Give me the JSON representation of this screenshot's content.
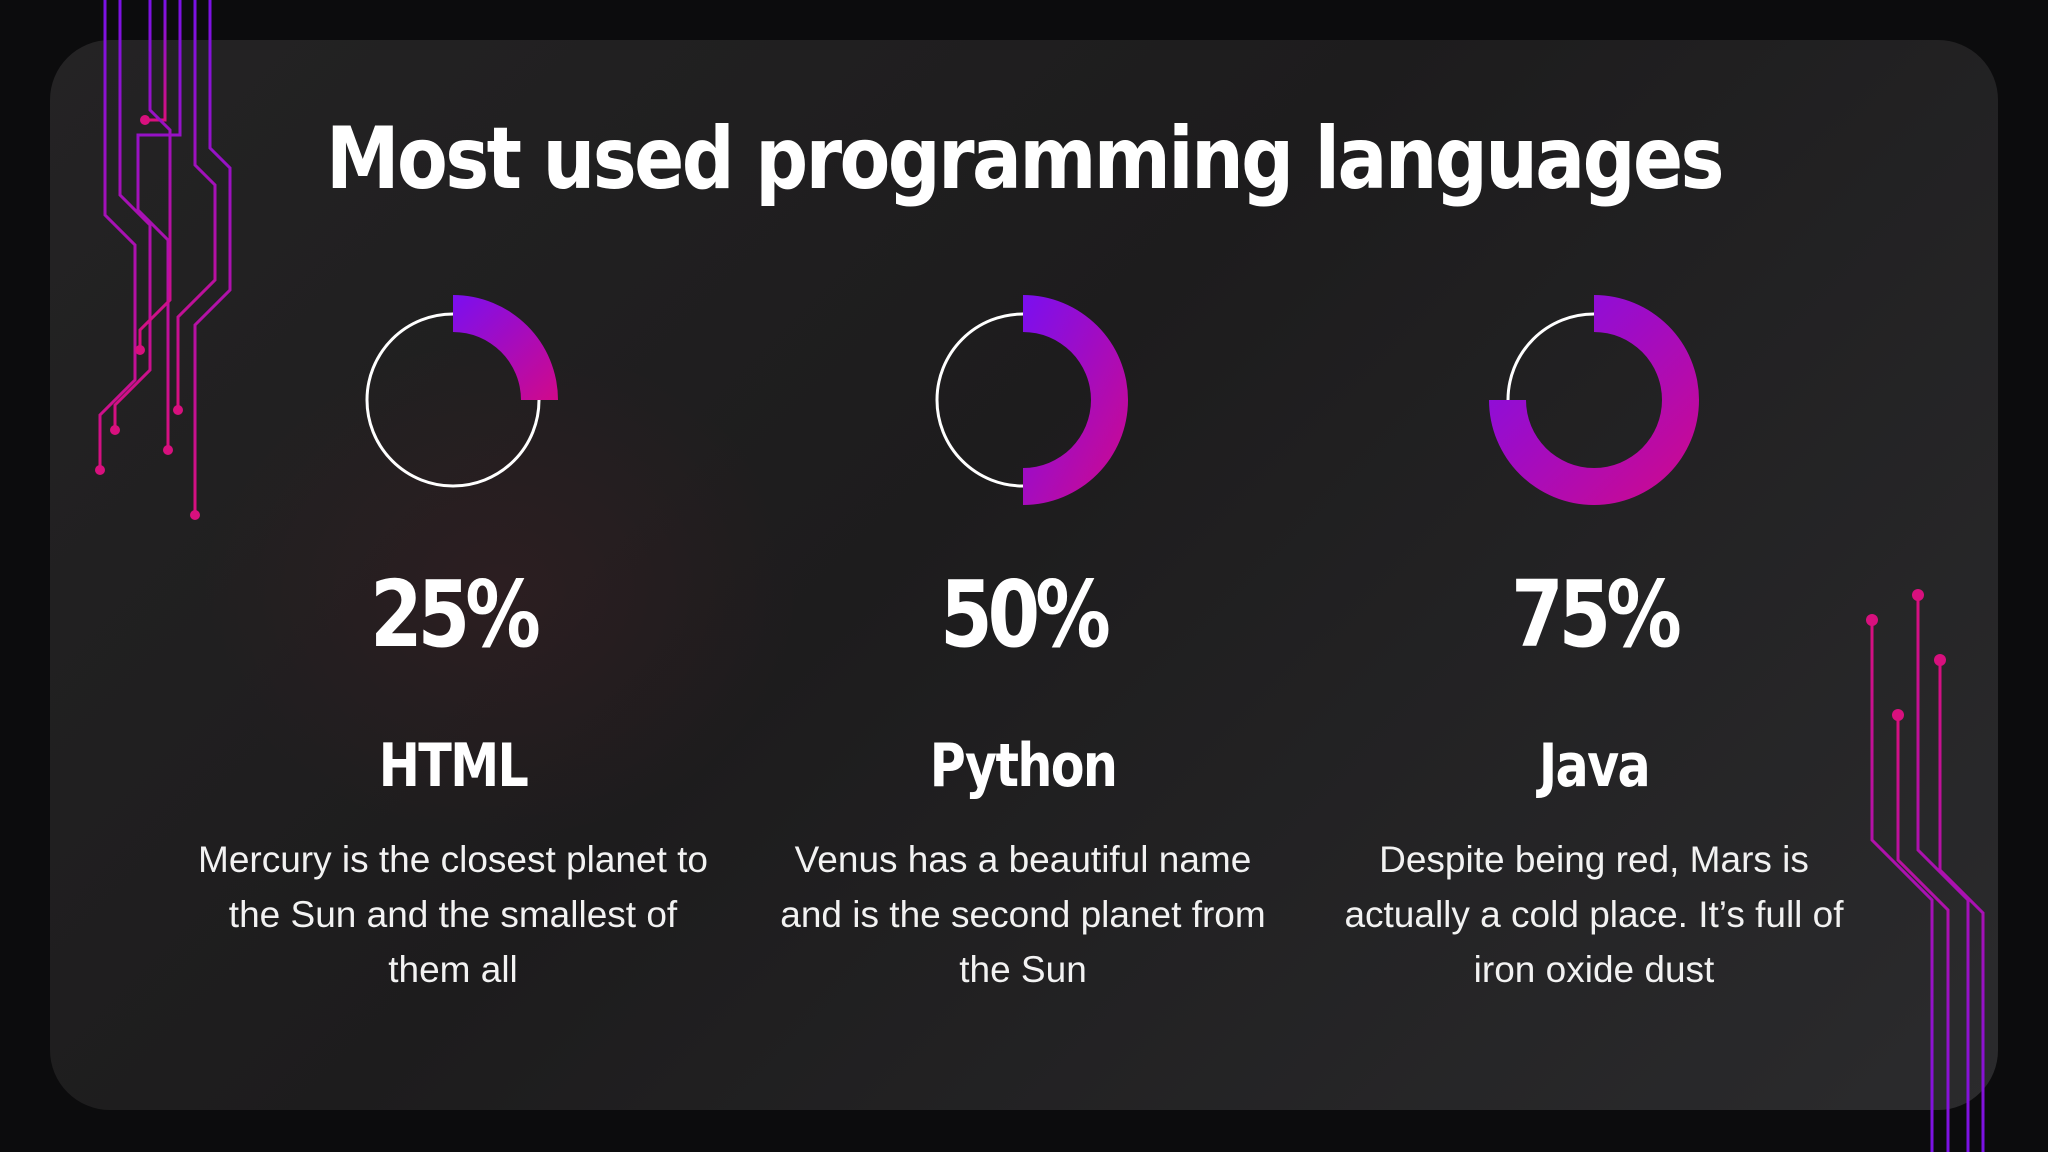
{
  "title": "Most used programming languages",
  "colors": {
    "background": "#0c0c0d",
    "panel": "#232224",
    "accent_start": "#7a0ff0",
    "accent_end": "#d1098a",
    "text": "#ffffff",
    "track": "#ffffff"
  },
  "chart_data": [
    {
      "type": "pie",
      "variant": "donut-progress",
      "label": "HTML",
      "value": 25,
      "value_label": "25%",
      "max": 100,
      "description": "Mercury is the closest planet to the Sun and the smallest of them all"
    },
    {
      "type": "pie",
      "variant": "donut-progress",
      "label": "Python",
      "value": 50,
      "value_label": "50%",
      "max": 100,
      "description": "Venus has a beautiful name and is the second planet from the Sun"
    },
    {
      "type": "pie",
      "variant": "donut-progress",
      "label": "Java",
      "value": 75,
      "value_label": "75%",
      "max": 100,
      "description": "Despite being red, Mars is actually a cold place. It’s full of iron oxide dust"
    }
  ]
}
